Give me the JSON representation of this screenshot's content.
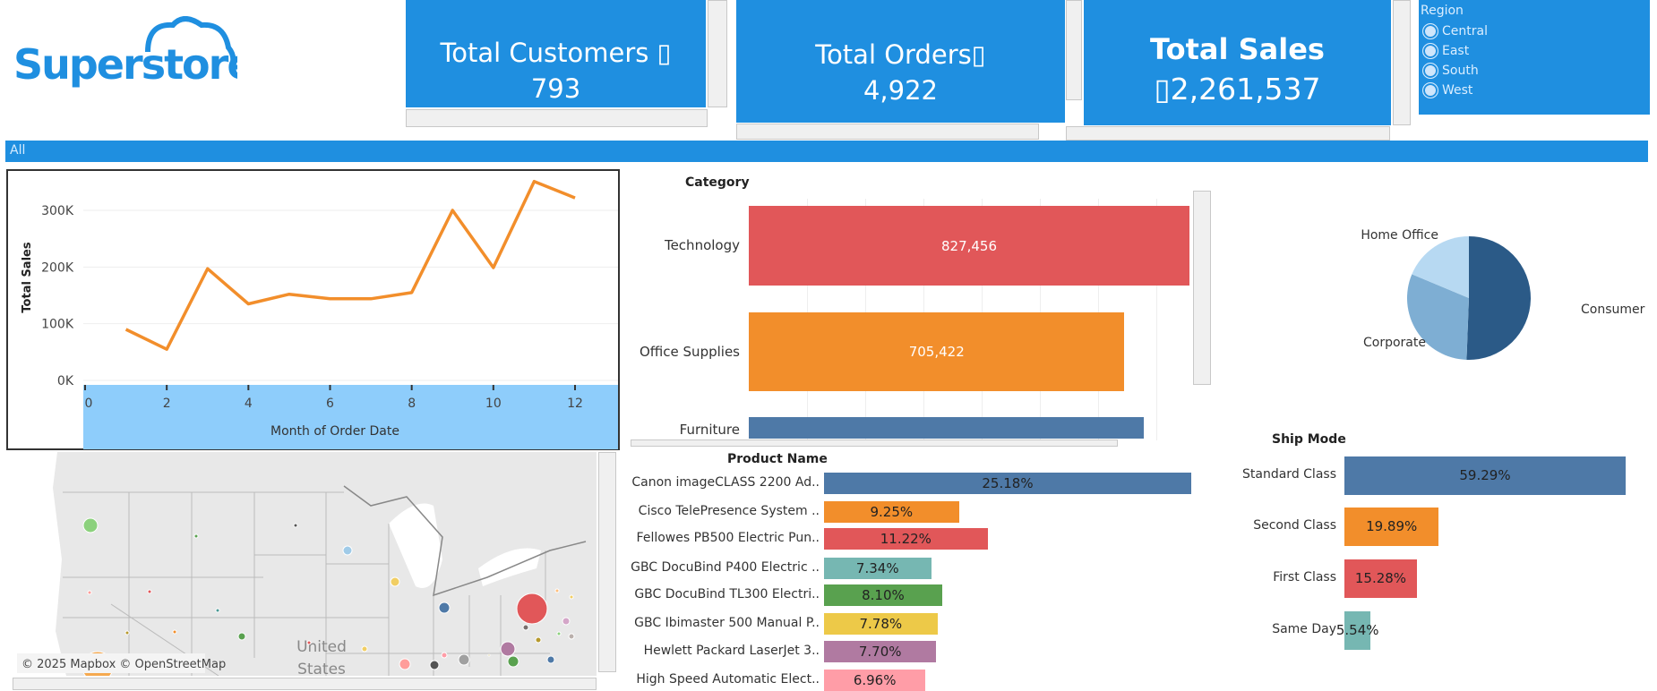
{
  "logo": {
    "text": "Superstore",
    "color": "#1f8fe0"
  },
  "kpis": [
    {
      "title": "Total Customers ▯",
      "value": "793"
    },
    {
      "title": "Total Orders▯",
      "value": "4,922"
    },
    {
      "title": "Total Sales",
      "value": "▯2,261,537"
    }
  ],
  "region_filter": {
    "title": "Region",
    "options": [
      "Central",
      "East",
      "South",
      "West"
    ]
  },
  "filter_bar": {
    "label": "All"
  },
  "colors": {
    "accent": "#1f8fe0",
    "axis_band": "#8ecdfb",
    "line": "#f28e2b"
  },
  "chart_data": [
    {
      "type": "line",
      "xlabel": "Month of Order Date",
      "ylabel": "Total Sales",
      "x": [
        1,
        2,
        3,
        4,
        5,
        6,
        7,
        8,
        9,
        10,
        11,
        12
      ],
      "values": [
        90000,
        55000,
        197000,
        135000,
        152000,
        144000,
        144000,
        155000,
        300000,
        199000,
        351000,
        322000
      ],
      "xlim": [
        0,
        12.5
      ],
      "ylim": [
        0,
        370000
      ],
      "xticks": [
        "0",
        "2",
        "4",
        "6",
        "8",
        "10",
        "12"
      ],
      "yticks": [
        "0K",
        "100K",
        "200K",
        "300K"
      ],
      "grid": true
    },
    {
      "type": "bar",
      "orientation": "horizontal",
      "title": "Category",
      "categories": [
        "Technology",
        "Office Supplies",
        "Furniture"
      ],
      "values": [
        827456,
        705422,
        742000
      ],
      "labels": [
        "827,456",
        "705,422",
        ""
      ],
      "colors": [
        "#e15759",
        "#f28e2b",
        "#4e79a7"
      ]
    },
    {
      "type": "pie",
      "categories": [
        "Consumer",
        "Corporate",
        "Home Office"
      ],
      "values": [
        50.6,
        30.7,
        18.7
      ],
      "colors": [
        "#2b5a87",
        "#7eaed3",
        "#b7d9f2"
      ]
    },
    {
      "type": "bar",
      "orientation": "horizontal",
      "title": "Product Name",
      "categories": [
        "Canon imageCLASS 2200 Ad..",
        "Cisco TelePresence System ..",
        "Fellowes PB500 Electric Pun..",
        "GBC DocuBind P400 Electric ..",
        "GBC DocuBind TL300 Electri..",
        "GBC Ibimaster 500 Manual P..",
        "Hewlett Packard LaserJet 3..",
        "High Speed Automatic Elect.."
      ],
      "values": [
        25.18,
        9.25,
        11.22,
        7.34,
        8.1,
        7.78,
        7.7,
        6.96
      ],
      "labels": [
        "25.18%",
        "9.25%",
        "11.22%",
        "7.34%",
        "8.10%",
        "7.78%",
        "7.70%",
        "6.96%"
      ],
      "colors": [
        "#4e79a7",
        "#f28e2b",
        "#e15759",
        "#76b7b2",
        "#59a14f",
        "#edc948",
        "#b07aa1",
        "#ff9da7"
      ]
    },
    {
      "type": "bar",
      "orientation": "horizontal",
      "title": "Ship Mode",
      "categories": [
        "Standard Class",
        "Second Class",
        "First Class",
        "Same Day"
      ],
      "values": [
        59.29,
        19.89,
        15.28,
        5.54
      ],
      "labels": [
        "59.29%",
        "19.89%",
        "15.28%",
        "5.54%"
      ],
      "colors": [
        "#4e79a7",
        "#f28e2b",
        "#e15759",
        "#76b7b2"
      ]
    }
  ],
  "map": {
    "country_label_1": "United",
    "country_label_2": "States",
    "attribution": "© 2025 Mapbox © OpenStreetMap"
  }
}
